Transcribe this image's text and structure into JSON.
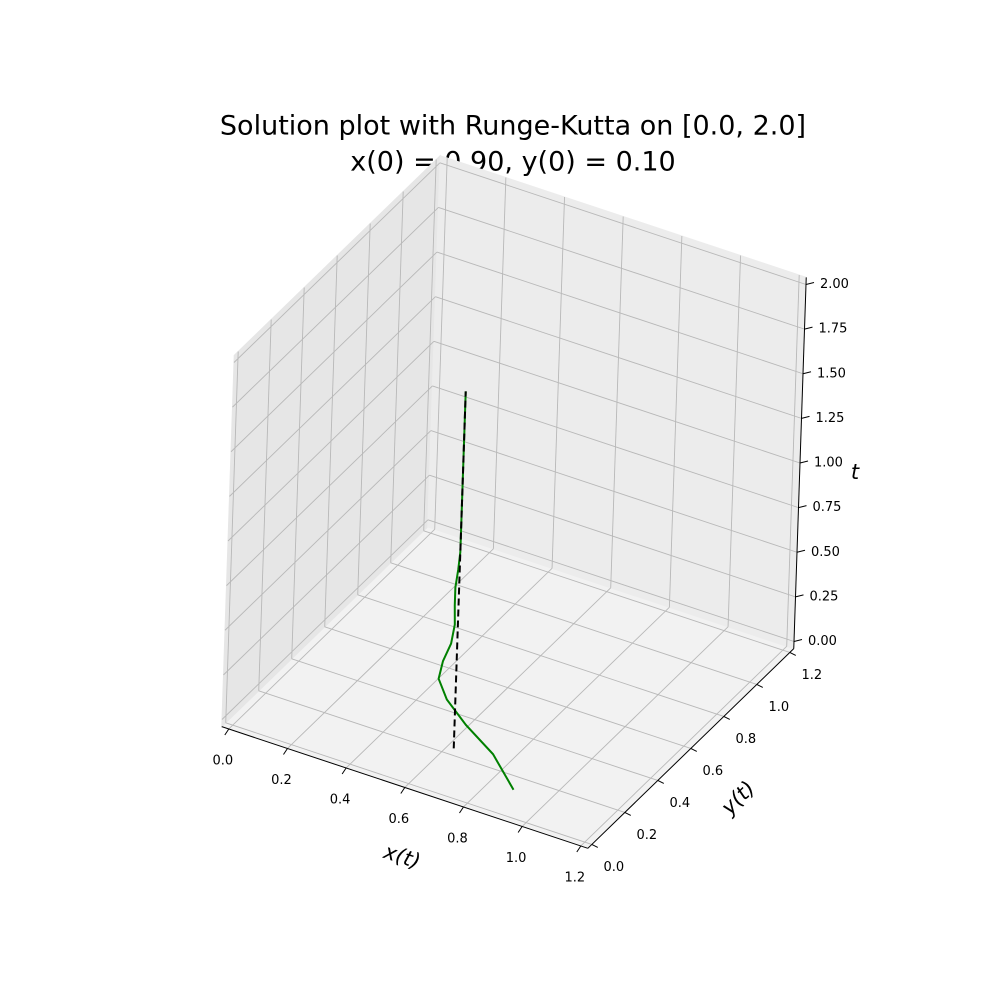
{
  "chart_data": {
    "type": "line3d",
    "title": "Solution plot with Runge-Kutta on [0.0, 2.0]",
    "subtitle": "x(0) = 0.90, y(0) = 0.10",
    "xlabel": "x(t)",
    "ylabel": "y(t)",
    "zlabel": "t",
    "xlim": [
      0,
      1.2
    ],
    "ylim": [
      0,
      1.2
    ],
    "zlim": [
      0,
      2
    ],
    "xticks": [
      {
        "value": 0,
        "label": "0.0"
      },
      0.2,
      0.4,
      0.6,
      0.8,
      {
        "value": 1,
        "label": "1.0"
      },
      1.2
    ],
    "yticks": [
      {
        "value": 0,
        "label": "0.0"
      },
      0.2,
      0.4,
      0.6,
      0.8,
      {
        "value": 1,
        "label": "1.0"
      },
      1.2
    ],
    "zticks": [
      {
        "value": 0,
        "label": "0.00"
      },
      0.25,
      {
        "value": 0.5,
        "label": "0.50"
      },
      0.75,
      {
        "value": 1,
        "label": "1.00"
      },
      1.25,
      {
        "value": 1.5,
        "label": "1.50"
      },
      1.75,
      {
        "value": 2,
        "label": "2.00"
      }
    ],
    "grid": true,
    "series": [
      {
        "color": "#008000",
        "style": "solid",
        "x": [
          0.9,
          0.8,
          0.7,
          0.63,
          0.6,
          0.61,
          0.63,
          0.635,
          0.63,
          0.63,
          0.635,
          0.64,
          0.64,
          0.64,
          0.64,
          0.64,
          0.64,
          0.64,
          0.64,
          0.64,
          0.64
        ],
        "y": [
          0.1,
          0.15,
          0.16,
          0.165,
          0.165,
          0.17,
          0.18,
          0.19,
          0.195,
          0.195,
          0.2,
          0.2,
          0.2,
          0.2,
          0.2,
          0.2,
          0.2,
          0.2,
          0.2,
          0.2,
          0.2
        ],
        "t": [
          0,
          0.1,
          0.2,
          0.3,
          0.4,
          0.5,
          0.6,
          0.7,
          0.8,
          0.9,
          1.0,
          1.1,
          1.2,
          1.3,
          1.4,
          1.5,
          1.6,
          1.7,
          1.8,
          1.9,
          2.0
        ]
      },
      {
        "color": "#000000",
        "style": "dashed",
        "x": [
          0.64,
          0.64
        ],
        "y": [
          0.2,
          0.2
        ],
        "t": [
          0,
          2
        ]
      }
    ]
  }
}
